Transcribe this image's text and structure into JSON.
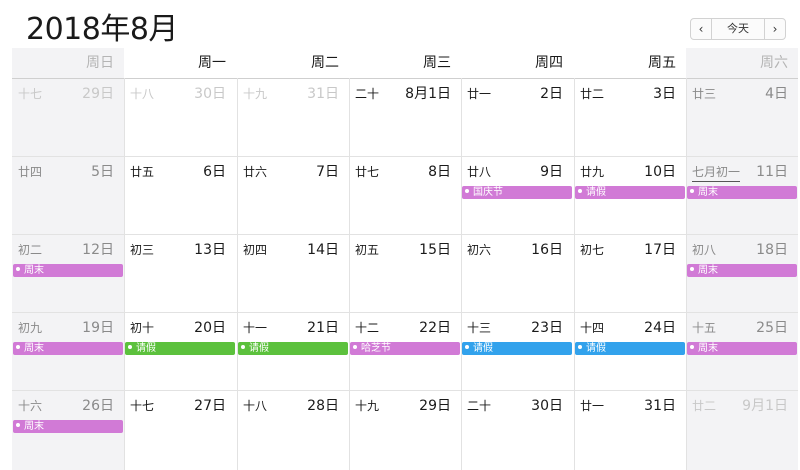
{
  "title": "2018年8月",
  "nav": {
    "prev": "‹",
    "today": "今天",
    "next": "›"
  },
  "weekdays": [
    "周日",
    "周一",
    "周二",
    "周三",
    "周四",
    "周五",
    "周六"
  ],
  "colors": {
    "purple": "#d17ad6",
    "green": "#5cc13d",
    "blue": "#32a2ec"
  },
  "weeks": [
    {
      "days": [
        {
          "lunar": "十七",
          "solar": "29日",
          "dim": true
        },
        {
          "lunar": "十八",
          "solar": "30日",
          "dim": true
        },
        {
          "lunar": "十九",
          "solar": "31日",
          "dim": true
        },
        {
          "lunar": "二十",
          "solar": "8月1日"
        },
        {
          "lunar": "廿一",
          "solar": "2日"
        },
        {
          "lunar": "廿二",
          "solar": "3日"
        },
        {
          "lunar": "廿三",
          "solar": "4日"
        }
      ]
    },
    {
      "days": [
        {
          "lunar": "廿四",
          "solar": "5日"
        },
        {
          "lunar": "廿五",
          "solar": "6日"
        },
        {
          "lunar": "廿六",
          "solar": "7日"
        },
        {
          "lunar": "廿七",
          "solar": "8日"
        },
        {
          "lunar": "廿八",
          "solar": "9日",
          "event": {
            "label": "国庆节",
            "color": "purple"
          }
        },
        {
          "lunar": "廿九",
          "solar": "10日",
          "event": {
            "label": "请假",
            "color": "purple"
          }
        },
        {
          "lunar": "七月初一",
          "solar": "11日",
          "underline": true,
          "event": {
            "label": "周末",
            "color": "purple"
          }
        }
      ]
    },
    {
      "days": [
        {
          "lunar": "初二",
          "solar": "12日",
          "event": {
            "label": "周末",
            "color": "purple"
          }
        },
        {
          "lunar": "初三",
          "solar": "13日"
        },
        {
          "lunar": "初四",
          "solar": "14日"
        },
        {
          "lunar": "初五",
          "solar": "15日"
        },
        {
          "lunar": "初六",
          "solar": "16日"
        },
        {
          "lunar": "初七",
          "solar": "17日"
        },
        {
          "lunar": "初八",
          "solar": "18日",
          "event": {
            "label": "周末",
            "color": "purple"
          }
        }
      ]
    },
    {
      "days": [
        {
          "lunar": "初九",
          "solar": "19日",
          "event": {
            "label": "周末",
            "color": "purple"
          }
        },
        {
          "lunar": "初十",
          "solar": "20日",
          "event": {
            "label": "请假",
            "color": "green"
          }
        },
        {
          "lunar": "十一",
          "solar": "21日",
          "event": {
            "label": "请假",
            "color": "green"
          }
        },
        {
          "lunar": "十二",
          "solar": "22日",
          "event": {
            "label": "哈芝节",
            "color": "purple"
          }
        },
        {
          "lunar": "十三",
          "solar": "23日",
          "event": {
            "label": "请假",
            "color": "blue"
          }
        },
        {
          "lunar": "十四",
          "solar": "24日",
          "event": {
            "label": "请假",
            "color": "blue"
          }
        },
        {
          "lunar": "十五",
          "solar": "25日",
          "event": {
            "label": "周末",
            "color": "purple"
          }
        }
      ]
    },
    {
      "days": [
        {
          "lunar": "十六",
          "solar": "26日",
          "event": {
            "label": "周末",
            "color": "purple"
          }
        },
        {
          "lunar": "十七",
          "solar": "27日"
        },
        {
          "lunar": "十八",
          "solar": "28日"
        },
        {
          "lunar": "十九",
          "solar": "29日"
        },
        {
          "lunar": "二十",
          "solar": "30日"
        },
        {
          "lunar": "廿一",
          "solar": "31日"
        },
        {
          "lunar": "廿二",
          "solar": "9月1日",
          "dim": true
        }
      ]
    }
  ]
}
